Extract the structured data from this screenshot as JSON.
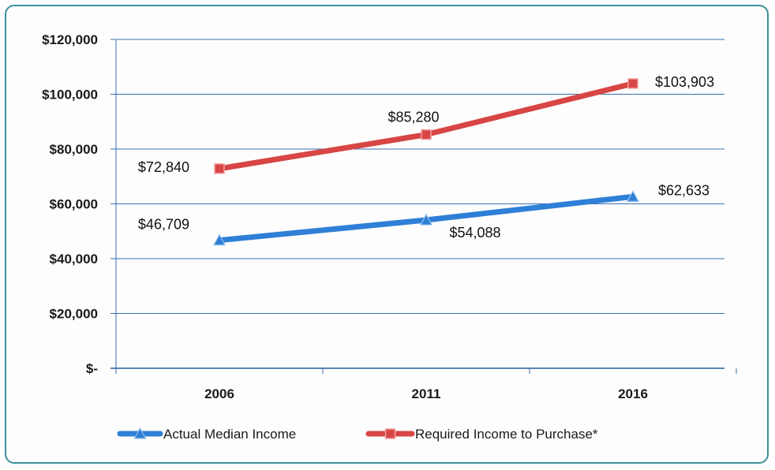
{
  "chart_data": {
    "type": "line",
    "categories": [
      "2006",
      "2011",
      "2016"
    ],
    "ylim": [
      0,
      120000
    ],
    "yticks": [
      "$-",
      "$20,000",
      "$40,000",
      "$60,000",
      "$80,000",
      "$100,000",
      "$120,000"
    ],
    "grid": true,
    "legend_position": "bottom",
    "series": [
      {
        "name": "Actual Median Income",
        "values": [
          46709,
          54088,
          62633
        ],
        "labels": [
          "$46,709",
          "$54,088",
          "$62,633"
        ],
        "color": "#2f7fd6",
        "marker": "triangle"
      },
      {
        "name": "Required Income to Purchase*",
        "values": [
          72840,
          85280,
          103903
        ],
        "labels": [
          "$72,840",
          "$85,280",
          "$103,903"
        ],
        "color": "#d84545",
        "marker": "square"
      }
    ]
  }
}
